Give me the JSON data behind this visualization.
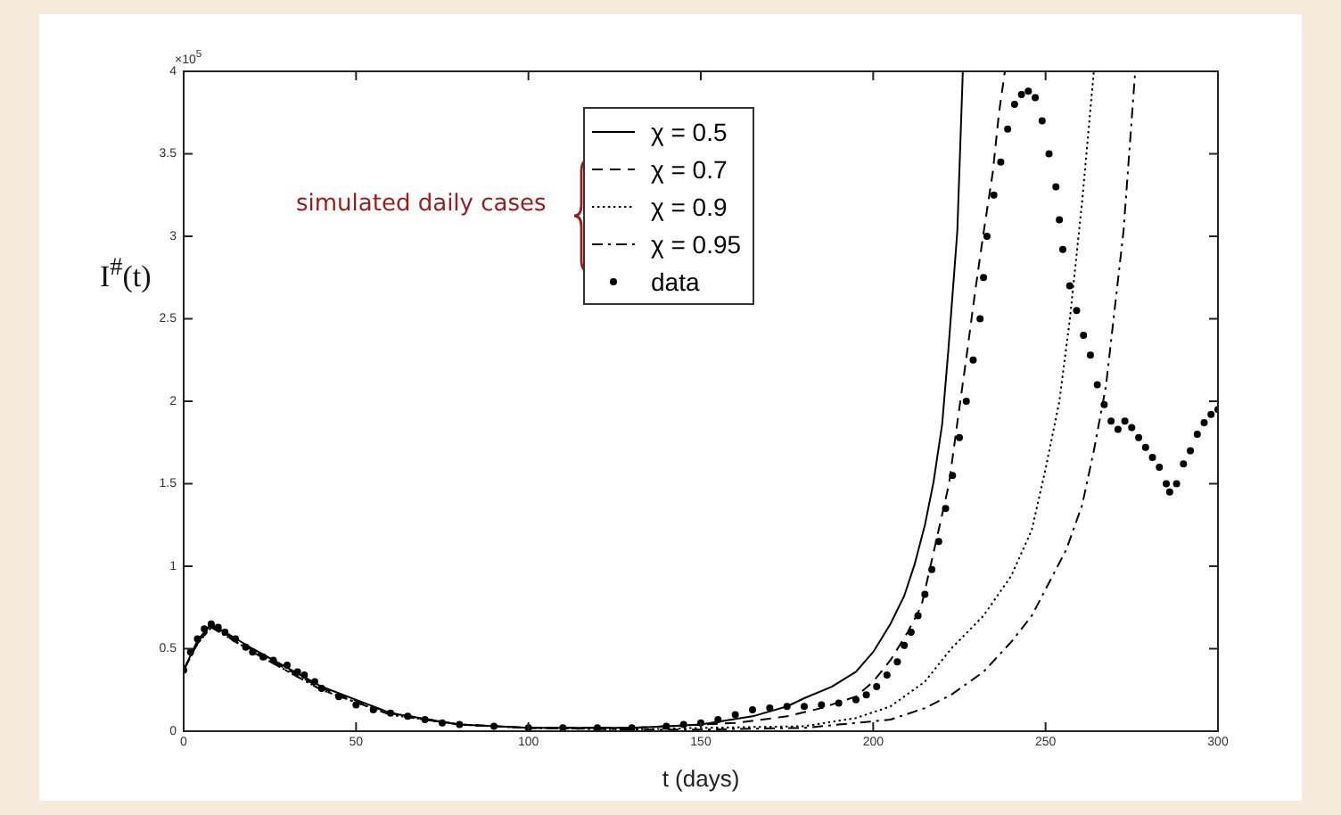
{
  "chart_data": {
    "type": "line",
    "xlabel": "t (days)",
    "ylabel": "I$^{#}$(t)",
    "annotations": [
      "simulated daily cases",
      "×10$^{5}$"
    ],
    "xlim": [
      0,
      300
    ],
    "xticks": [
      0,
      50,
      100,
      150,
      200,
      250,
      300
    ],
    "ylim": [
      0,
      4
    ],
    "yticks": [
      0,
      0.5,
      1,
      1.5,
      2,
      2.5,
      3,
      3.5,
      4
    ],
    "grid": false,
    "legend": "top",
    "series": [
      {
        "name": "χ = 0.5",
        "color": "#000000",
        "line_style": "solid",
        "marker": "none",
        "x": [
          0,
          4,
          8,
          20,
          40,
          60,
          80,
          100,
          130,
          150,
          165,
          175,
          180,
          188,
          195,
          200,
          205,
          209,
          212,
          215,
          217.5,
          220,
          221.8,
          224.4,
          226
        ],
        "values": [
          0.37,
          0.55,
          0.65,
          0.5,
          0.27,
          0.11,
          0.04,
          0.02,
          0.02,
          0.04,
          0.09,
          0.15,
          0.2,
          0.27,
          0.36,
          0.48,
          0.65,
          0.82,
          1.01,
          1.25,
          1.51,
          1.86,
          2.31,
          3.03,
          4
        ]
      },
      {
        "name": "χ = 0.7",
        "color": "#000000",
        "line_style": "dashed",
        "marker": "none",
        "x": [
          0,
          4,
          8,
          20,
          40,
          60,
          80,
          100,
          130,
          160,
          175,
          185,
          195,
          200,
          205,
          210,
          214,
          219,
          222,
          224.4,
          227,
          229.6,
          232,
          234.7,
          236.5,
          238.2
        ],
        "values": [
          0.37,
          0.54,
          0.64,
          0.49,
          0.26,
          0.11,
          0.04,
          0.02,
          0.02,
          0.05,
          0.09,
          0.14,
          0.21,
          0.3,
          0.43,
          0.6,
          0.76,
          1.22,
          1.5,
          1.87,
          2.26,
          2.67,
          3.02,
          3.39,
          3.75,
          4
        ]
      },
      {
        "name": "χ = 0.9",
        "color": "#000000",
        "line_style": "dotted",
        "marker": "none",
        "x": [
          0,
          4,
          8,
          20,
          40,
          60,
          80,
          100,
          130,
          150,
          180,
          195,
          205,
          215,
          222.6,
          232,
          240,
          246,
          250,
          254,
          257,
          260.6,
          264
        ],
        "values": [
          0.37,
          0.53,
          0.63,
          0.48,
          0.25,
          0.1,
          0.04,
          0.02,
          0.01,
          0.02,
          0.03,
          0.08,
          0.15,
          0.3,
          0.5,
          0.7,
          0.94,
          1.22,
          1.59,
          2.0,
          2.49,
          3.21,
          4
        ]
      },
      {
        "name": "χ = 0.95",
        "color": "#000000",
        "line_style": "dashdot",
        "marker": "none",
        "x": [
          0,
          4,
          8,
          20,
          40,
          60,
          80,
          100,
          130,
          150,
          180,
          205,
          215,
          222.6,
          232,
          240,
          246,
          250,
          256,
          260.6,
          264,
          267.5,
          270,
          272.6,
          276
        ],
        "values": [
          0.37,
          0.53,
          0.63,
          0.48,
          0.25,
          0.1,
          0.04,
          0.02,
          0.01,
          0.01,
          0.02,
          0.07,
          0.14,
          0.22,
          0.36,
          0.54,
          0.7,
          0.86,
          1.1,
          1.37,
          1.7,
          2.09,
          2.55,
          3.03,
          4
        ]
      },
      {
        "name": "data",
        "type": "scatter",
        "color": "#000000",
        "marker": "circle",
        "x": [
          0,
          2,
          4,
          6,
          8,
          10,
          12,
          15,
          18,
          20,
          23,
          26,
          30,
          33,
          35,
          38,
          40,
          45,
          50,
          55,
          60,
          65,
          70,
          75,
          80,
          90,
          100,
          110,
          120,
          130,
          140,
          145,
          150,
          155,
          160,
          165,
          170,
          175,
          180,
          185,
          190,
          195,
          198,
          201,
          204,
          207,
          209,
          211,
          213,
          215,
          217,
          219,
          221,
          223,
          225,
          227,
          229,
          231,
          232,
          233,
          235,
          237,
          239,
          241,
          243,
          245,
          247,
          249,
          251,
          253,
          254,
          255,
          257,
          259,
          261,
          263,
          265,
          267,
          269,
          271,
          273,
          275,
          277,
          279,
          281,
          283,
          285,
          286,
          288,
          290,
          292,
          294,
          296,
          298,
          300
        ],
        "values": [
          0.37,
          0.48,
          0.56,
          0.62,
          0.65,
          0.63,
          0.6,
          0.56,
          0.51,
          0.48,
          0.45,
          0.43,
          0.4,
          0.36,
          0.34,
          0.3,
          0.26,
          0.21,
          0.16,
          0.13,
          0.11,
          0.09,
          0.07,
          0.05,
          0.04,
          0.03,
          0.02,
          0.02,
          0.02,
          0.02,
          0.03,
          0.04,
          0.05,
          0.07,
          0.1,
          0.13,
          0.14,
          0.15,
          0.15,
          0.16,
          0.17,
          0.19,
          0.22,
          0.27,
          0.34,
          0.42,
          0.52,
          0.6,
          0.7,
          0.83,
          0.98,
          1.15,
          1.35,
          1.55,
          1.78,
          2.0,
          2.25,
          2.5,
          2.75,
          3.0,
          3.25,
          3.45,
          3.65,
          3.8,
          3.86,
          3.88,
          3.84,
          3.7,
          3.5,
          3.3,
          3.1,
          2.92,
          2.7,
          2.55,
          2.4,
          2.28,
          2.1,
          1.98,
          1.88,
          1.83,
          1.88,
          1.84,
          1.78,
          1.72,
          1.66,
          1.6,
          1.5,
          1.45,
          1.5,
          1.62,
          1.7,
          1.8,
          1.87,
          1.92,
          1.95
        ]
      }
    ]
  }
}
